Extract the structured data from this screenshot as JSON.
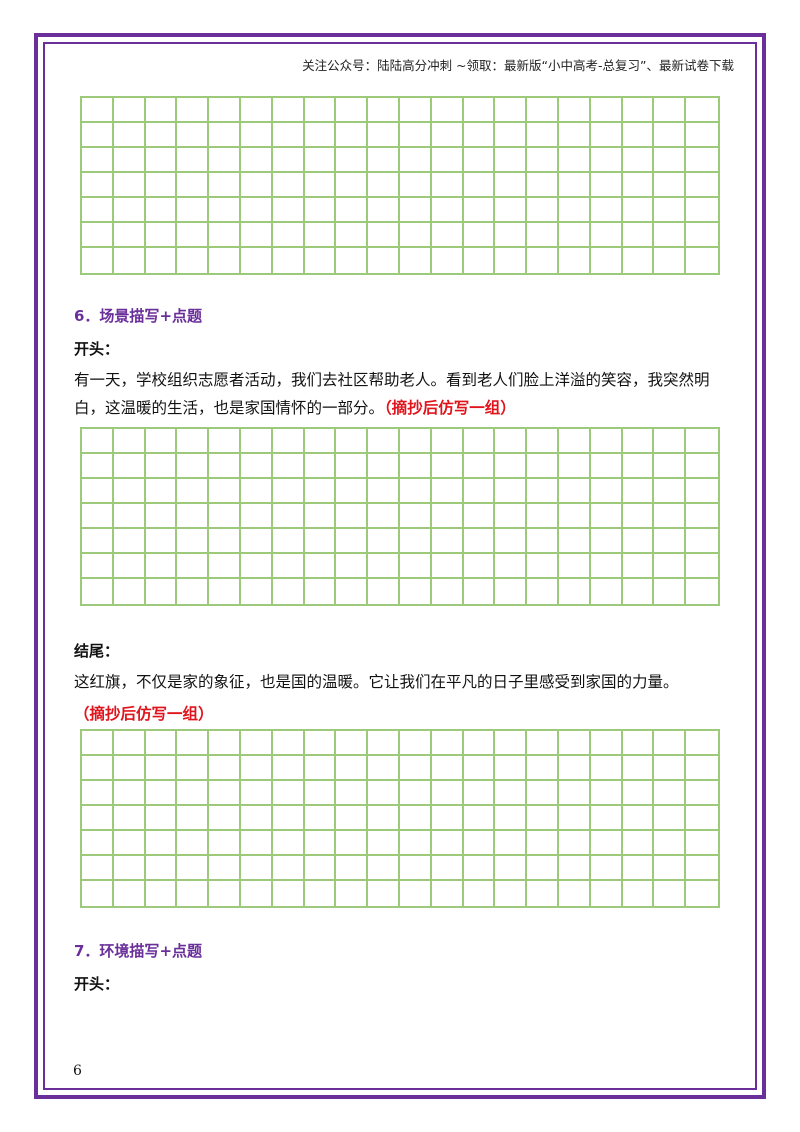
{
  "header": {
    "text": "关注公众号：陆陆高分冲刺 ~领取：最新版“小中高考-总复习”、最新试卷下载"
  },
  "section6": {
    "heading": "6．场景描写+点题",
    "opening_label": "开头：",
    "opening_text": "有一天，学校组织志愿者活动，我们去社区帮助老人。看到老人们脸上洋溢的笑容，我突然明白，这温暖的生活，也是家国情怀的一部分。",
    "opening_note": "（摘抄后仿写一组）",
    "ending_label": "结尾：",
    "ending_text": "这红旗，不仅是家的象征，也是国的温暖。它让我们在平凡的日子里感受到家国的力量。",
    "ending_note": "（摘抄后仿写一组）"
  },
  "section7": {
    "heading": "7．环境描写+点题",
    "opening_label": "开头："
  },
  "page_number": "6",
  "colors": {
    "frame": "#6a2f9a",
    "grid": "#9cc97a",
    "heading": "#6a2f9a",
    "note": "#e0141c"
  }
}
